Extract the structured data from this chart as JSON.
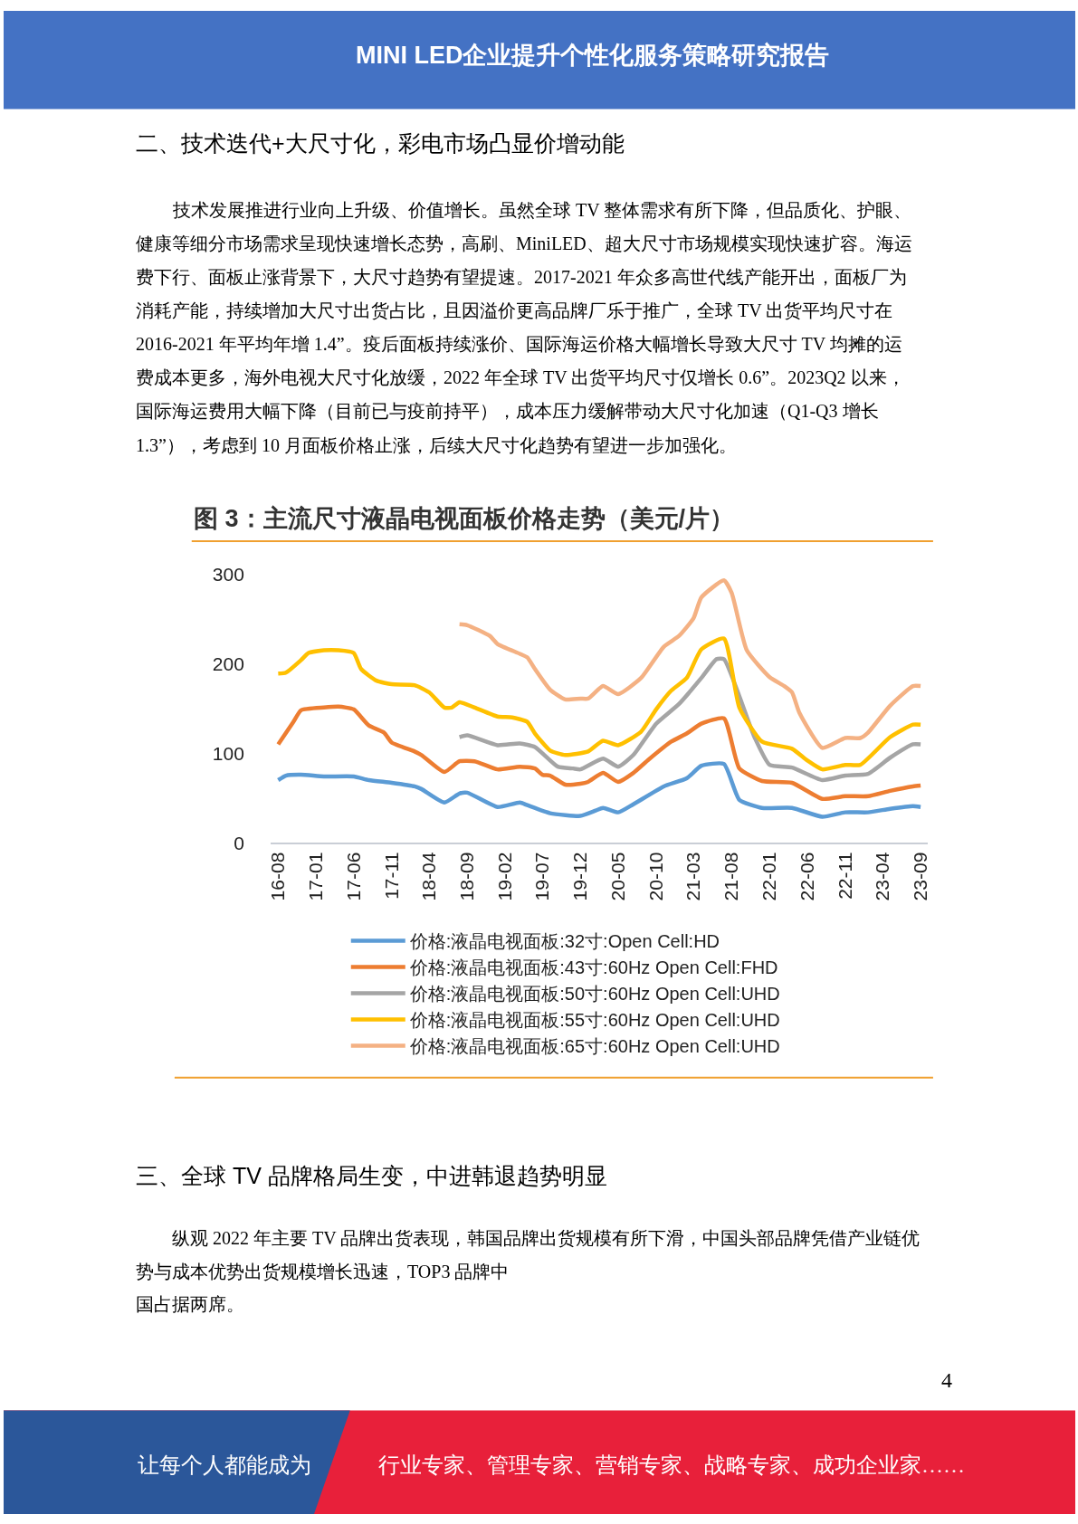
{
  "chart_data": {
    "type": "line",
    "title": "图 3：主流尺寸液晶电视面板价格走势（美元/片）",
    "annotations": [
      "MINI LED企业提升个性化服务策略研究报告",
      "二、技术迭代+大尺寸化，彩电市场凸显价增动能",
      "技术发展推进行业向上升级、价值增长。虽然全球 TV 整体需求有所下降，但品质化、护眼、",
      "健康等细分市场需求呈现快速增长态势，高刷、MiniLED、超大尺寸市场规模实现快速扩容。海运",
      "费下行、面板止涨背景下，大尺寸趋势有望提速。2017-2021 年众多高世代线产能开出，面板厂为",
      "消耗产能，持续增加大尺寸出货占比，且因溢价更高品牌厂乐于推广，全球 TV 出货平均尺寸在",
      "2016-2021 年平均年增 1.4”。疫后面板持续涨价、国际海运价格大幅增长导致大尺寸 TV 均摊的运",
      "费成本更多，海外电视大尺寸化放缓，2022 年全球 TV 出货平均尺寸仅增长 0.6”。2023Q2 以来，",
      "国际海运费用大幅下降（目前已与疫前持平），成本压力缓解带动大尺寸化加速（Q1-Q3 增长",
      "1.3”），考虑到 10 月面板价格止涨，后续大尺寸化趋势有望进一步加强化。",
      "三、全球 TV 品牌格局生变，中进韩退趋势明显",
      "纵观 2022 年主要 TV 品牌出货表现，韩国品牌出货规模有所下滑，中国头部品牌凭借产业链优",
      "势与成本优势出货规模增长迅速，TOP3 品牌中",
      "国占据两席。",
      "4",
      "让每个人都能成为",
      "行业专家、管理专家、营销专家、战略专家、成功企业家……"
    ],
    "xlim": [
      "2016-07",
      "2023-10"
    ],
    "xticks": [
      {
        "value": "2016-08",
        "label": "16-08"
      },
      {
        "value": "2017-01",
        "label": "17-01"
      },
      {
        "value": "2017-06",
        "label": "17-06"
      },
      {
        "value": "2017-11",
        "label": "17-11"
      },
      {
        "value": "2018-04",
        "label": "18-04"
      },
      {
        "value": "2018-09",
        "label": "18-09"
      },
      {
        "value": "2019-02",
        "label": "19-02"
      },
      {
        "value": "2019-07",
        "label": "19-07"
      },
      {
        "value": "2019-12",
        "label": "19-12"
      },
      {
        "value": "2020-05",
        "label": "20-05"
      },
      {
        "value": "2020-10",
        "label": "20-10"
      },
      {
        "value": "2021-03",
        "label": "21-03"
      },
      {
        "value": "2021-08",
        "label": "21-08"
      },
      {
        "value": "2022-01",
        "label": "22-01"
      },
      {
        "value": "2022-06",
        "label": "22-06"
      },
      {
        "value": "2022-11",
        "label": "22-11"
      },
      {
        "value": "2023-04",
        "label": "23-04"
      },
      {
        "value": "2023-09",
        "label": "23-09"
      }
    ],
    "ylim": [
      0,
      300
    ],
    "yticks": [
      0,
      100,
      200,
      300
    ],
    "legend": "bottom",
    "marker": "none",
    "line_style": "solid",
    "series": [
      {
        "name": "价格:液晶电视面板:32寸:Open Cell:HD",
        "color": "#5b9bd5",
        "x": [
          "2016-08",
          "2016-09",
          "2016-11",
          "2017-02",
          "2017-06",
          "2017-08",
          "2017-11",
          "2018-02",
          "2018-03",
          "2018-06",
          "2018-08",
          "2018-09",
          "2019-01",
          "2019-04",
          "2019-05",
          "2019-08",
          "2019-12",
          "2020-02",
          "2020-03",
          "2020-05",
          "2020-07",
          "2020-11",
          "2021-02",
          "2021-04",
          "2021-07",
          "2021-09",
          "2021-12",
          "2022-04",
          "2022-08",
          "2022-11",
          "2023-02",
          "2023-05",
          "2023-08",
          "2023-09"
        ],
        "values": [
          70,
          75,
          76,
          74,
          74,
          70,
          67,
          63,
          60,
          45,
          55,
          56,
          40,
          45,
          42,
          33,
          30,
          36,
          39,
          34,
          43,
          63,
          72,
          86,
          88,
          48,
          39,
          39,
          29,
          34,
          34,
          38,
          41,
          40
        ]
      },
      {
        "name": "价格:液晶电视面板:43寸:60Hz Open Cell:FHD",
        "color": "#ed7d31",
        "x": [
          "2016-08",
          "2016-10",
          "2016-11",
          "2017-02",
          "2017-04",
          "2017-06",
          "2017-08",
          "2017-10",
          "2017-11",
          "2018-02",
          "2018-03",
          "2018-06",
          "2018-08",
          "2018-10",
          "2019-01",
          "2019-04",
          "2019-06",
          "2019-07",
          "2019-08",
          "2019-10",
          "2019-12",
          "2020-01",
          "2020-03",
          "2020-05",
          "2020-07",
          "2020-09",
          "2020-12",
          "2021-02",
          "2021-04",
          "2021-07",
          "2021-09",
          "2021-12",
          "2022-04",
          "2022-08",
          "2022-11",
          "2023-02",
          "2023-05",
          "2023-08",
          "2023-09"
        ],
        "values": [
          110,
          135,
          148,
          151,
          152,
          149,
          131,
          123,
          112,
          102,
          98,
          79,
          91,
          91,
          82,
          85,
          83,
          76,
          75,
          65,
          66,
          68,
          78,
          68,
          78,
          93,
          113,
          122,
          133,
          139,
          83,
          69,
          67,
          49,
          52,
          52,
          58,
          63,
          64
        ]
      },
      {
        "name": "价格:液晶电视面板:50寸:60Hz Open Cell:UHD",
        "color": "#a5a5a5",
        "x": [
          "2018-08",
          "2018-09",
          "2019-01",
          "2019-04",
          "2019-06",
          "2019-09",
          "2019-11",
          "2019-12",
          "2020-03",
          "2020-05",
          "2020-07",
          "2020-10",
          "2021-01",
          "2021-04",
          "2021-06",
          "2021-07",
          "2021-11",
          "2022-01",
          "2022-04",
          "2022-08",
          "2022-11",
          "2023-02",
          "2023-05",
          "2023-08",
          "2023-09"
        ],
        "values": [
          118,
          120,
          109,
          111,
          107,
          85,
          83,
          82,
          94,
          85,
          98,
          133,
          155,
          184,
          205,
          205,
          118,
          87,
          84,
          70,
          75,
          77,
          95,
          110,
          110
        ]
      },
      {
        "name": "价格:液晶电视面板:55寸:60Hz Open Cell:UHD",
        "color": "#ffc000",
        "x": [
          "2016-08",
          "2016-09",
          "2016-11",
          "2016-12",
          "2017-02",
          "2017-04",
          "2017-06",
          "2017-07",
          "2017-09",
          "2017-11",
          "2018-02",
          "2018-04",
          "2018-06",
          "2018-07",
          "2018-08",
          "2018-10",
          "2019-01",
          "2019-03",
          "2019-05",
          "2019-06",
          "2019-08",
          "2019-10",
          "2020-01",
          "2020-03",
          "2020-05",
          "2020-08",
          "2020-10",
          "2020-12",
          "2021-02",
          "2021-04",
          "2021-07",
          "2021-09",
          "2021-12",
          "2022-04",
          "2022-06",
          "2022-08",
          "2022-11",
          "2023-01",
          "2023-05",
          "2023-08",
          "2023-09"
        ],
        "values": [
          189,
          190,
          204,
          212,
          215,
          215,
          212,
          194,
          181,
          177,
          176,
          168,
          151,
          151,
          157,
          151,
          141,
          140,
          135,
          122,
          103,
          98,
          102,
          114,
          109,
          124,
          149,
          170,
          184,
          216,
          228,
          151,
          113,
          105,
          92,
          82,
          87,
          87,
          118,
          132,
          132
        ]
      },
      {
        "name": "价格:液晶电视面板:65寸:60Hz Open Cell:UHD",
        "color": "#f4b183",
        "x": [
          "2018-08",
          "2018-09",
          "2018-12",
          "2019-01",
          "2019-04",
          "2019-05",
          "2019-06",
          "2019-08",
          "2019-10",
          "2019-12",
          "2020-01",
          "2020-03",
          "2020-05",
          "2020-08",
          "2020-11",
          "2021-01",
          "2021-03",
          "2021-04",
          "2021-07",
          "2021-08",
          "2021-10",
          "2022-01",
          "2022-03",
          "2022-04",
          "2022-05",
          "2022-08",
          "2022-11",
          "2023-01",
          "2023-02",
          "2023-05",
          "2023-08",
          "2023-09"
        ],
        "values": [
          244,
          243,
          231,
          222,
          211,
          207,
          194,
          171,
          160,
          161,
          161,
          175,
          166,
          184,
          219,
          231,
          251,
          274,
          293,
          279,
          215,
          185,
          175,
          168,
          145,
          106,
          117,
          117,
          123,
          153,
          175,
          175
        ]
      }
    ]
  }
}
